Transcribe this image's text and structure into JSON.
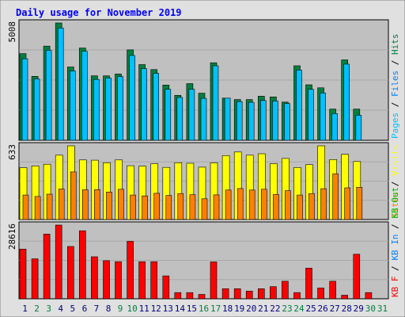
{
  "chart_data": {
    "title": "Daily usage for November 2019",
    "type": "bar",
    "categories": [
      "1",
      "2",
      "3",
      "4",
      "5",
      "6",
      "7",
      "8",
      "9",
      "10",
      "11",
      "12",
      "13",
      "14",
      "15",
      "16",
      "17",
      "18",
      "19",
      "20",
      "21",
      "22",
      "23",
      "24",
      "25",
      "26",
      "27",
      "28",
      "29",
      "30",
      "31"
    ],
    "weekend_days": [
      "2",
      "3",
      "9",
      "10",
      "16",
      "17",
      "23",
      "24",
      "30",
      "31"
    ],
    "colors": {
      "hits": "#008040",
      "files": "#00c0ff",
      "pages": "#00c0ff",
      "sites": "#ff8000",
      "visits": "#ffff00",
      "kb_in": "#0080ff",
      "kb_out": "#00c000",
      "kb_f": "#ff0000",
      "weekday_label": "#000080",
      "weekend_label": "#008040",
      "title": "#0000ff",
      "plot_bg": "#c0c0c0",
      "frame_bg": "#e0e0e0"
    },
    "panels": [
      {
        "id": "hits-panel",
        "ymax_label": "5008",
        "ylim": [
          0,
          5008
        ],
        "legend": [
          {
            "text": "Pages",
            "color": "#00c0ff"
          },
          {
            "text": " / ",
            "color": "#000000"
          },
          {
            "text": "Files",
            "color": "#0080ff"
          },
          {
            "text": " / ",
            "color": "#000000"
          },
          {
            "text": "Hits",
            "color": "#008040"
          }
        ],
        "series": [
          {
            "name": "Hits",
            "color": "#008040",
            "values": [
              3700,
              2730,
              4020,
              5008,
              3130,
              3940,
              2750,
              2750,
              2830,
              3860,
              3230,
              3020,
              2360,
              1920,
              2420,
              2010,
              3310,
              1800,
              1740,
              1740,
              1880,
              1850,
              1630,
              3180,
              2370,
              2240,
              1330,
              3430,
              1330,
              null,
              null
            ]
          },
          {
            "name": "Files",
            "color": "#00c0ff",
            "values": [
              3480,
              2620,
              3840,
              4790,
              2960,
              3800,
              2600,
              2660,
              2720,
              3620,
              3060,
              2860,
              2180,
              1830,
              2180,
              1790,
              3180,
              1800,
              1650,
              1620,
              1700,
              1680,
              1570,
              3000,
              2180,
              2020,
              1140,
              3250,
              1070,
              null,
              null
            ]
          }
        ]
      },
      {
        "id": "visits-panel",
        "ymax_label": "633",
        "ylim": [
          0,
          633
        ],
        "legend": [
          {
            "text": "Sites",
            "color": "#ff8000"
          },
          {
            "text": " / ",
            "color": "#000000"
          },
          {
            "text": "Visits",
            "color": "#ffff00"
          }
        ],
        "series": [
          {
            "name": "Visits",
            "color": "#ffff00",
            "values": [
              445,
              460,
              475,
              553,
              633,
              512,
              510,
              488,
              512,
              462,
              458,
              480,
              448,
              488,
              483,
              450,
              487,
              549,
              580,
              553,
              565,
              480,
              525,
              447,
              472,
              633,
              515,
              560,
              498,
              null,
              null
            ]
          },
          {
            "name": "Sites",
            "color": "#ff8000",
            "values": [
              210,
              198,
              218,
              262,
              409,
              255,
              257,
              236,
              260,
              210,
              203,
              225,
              207,
              223,
              213,
              178,
              212,
              253,
              266,
              253,
              260,
              215,
              248,
              210,
              223,
              265,
              392,
              272,
              277,
              null,
              null
            ]
          }
        ]
      },
      {
        "id": "kbytes-panel",
        "ymax_label": "28616",
        "ylim": [
          0,
          28616
        ],
        "legend": [
          {
            "text": "KB F",
            "color": "#ff0000"
          },
          {
            "text": " / ",
            "color": "#000000"
          },
          {
            "text": "KB In",
            "color": "#0080ff"
          },
          {
            "text": " / ",
            "color": "#000000"
          },
          {
            "text": "KB Out",
            "color": "#00c000"
          }
        ],
        "series": [
          {
            "name": "KB F",
            "color": "#ff0000",
            "values": [
              19300,
              15500,
              25100,
              28616,
              20300,
              26400,
              16300,
              14800,
              14400,
              22300,
              14400,
              14400,
              8900,
              2400,
              2400,
              1700,
              14300,
              3900,
              3900,
              3000,
              3900,
              4700,
              6800,
              2400,
              11900,
              4200,
              6800,
              1400,
              17300,
              2400,
              null
            ]
          }
        ]
      }
    ]
  }
}
